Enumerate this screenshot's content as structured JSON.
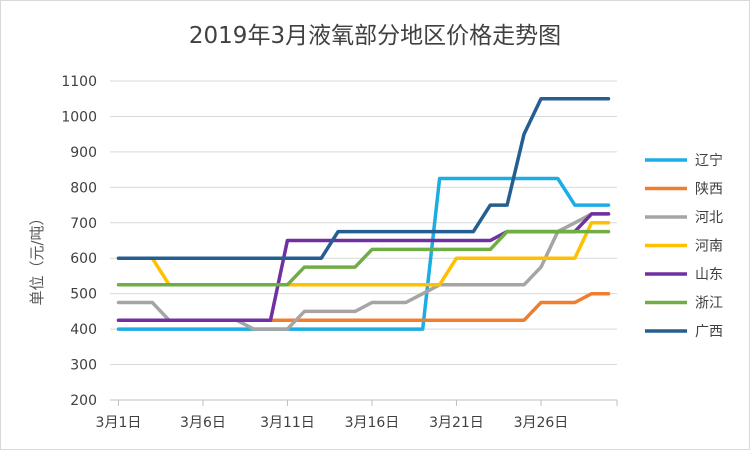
{
  "chart_data": {
    "type": "line",
    "title": "2019年3月液氧部分地区价格走势图",
    "ylabel": "单位（元/吨）",
    "xlabel": "",
    "ylim": [
      200,
      1100
    ],
    "yticks": [
      200,
      300,
      400,
      500,
      600,
      700,
      800,
      900,
      1000,
      1100
    ],
    "x": [
      1,
      2,
      3,
      4,
      5,
      6,
      7,
      8,
      9,
      10,
      11,
      12,
      13,
      14,
      15,
      16,
      17,
      18,
      19,
      20,
      21,
      22,
      23,
      24,
      25,
      26,
      27,
      28,
      29,
      30
    ],
    "xticks": [
      {
        "x": 1,
        "label": "3月1日"
      },
      {
        "x": 6,
        "label": "3月6日"
      },
      {
        "x": 11,
        "label": "3月11日"
      },
      {
        "x": 16,
        "label": "3月16日"
      },
      {
        "x": 21,
        "label": "3月21日"
      },
      {
        "x": 26,
        "label": "3月26日"
      }
    ],
    "legend_position": "right",
    "grid": true,
    "series": [
      {
        "name": "辽宁",
        "color": "#1cade4",
        "values": [
          400,
          400,
          400,
          400,
          400,
          400,
          400,
          400,
          400,
          400,
          400,
          400,
          400,
          400,
          400,
          400,
          400,
          400,
          400,
          825,
          825,
          825,
          825,
          825,
          825,
          825,
          825,
          750,
          750,
          750
        ]
      },
      {
        "name": "陕西",
        "color": "#f07f2d",
        "values": [
          425,
          425,
          425,
          425,
          425,
          425,
          425,
          425,
          425,
          425,
          425,
          425,
          425,
          425,
          425,
          425,
          425,
          425,
          425,
          425,
          425,
          425,
          425,
          425,
          425,
          475,
          475,
          475,
          500,
          500
        ]
      },
      {
        "name": "河北",
        "color": "#a5a5a5",
        "values": [
          475,
          475,
          475,
          425,
          425,
          425,
          425,
          425,
          400,
          400,
          400,
          450,
          450,
          450,
          450,
          475,
          475,
          475,
          500,
          525,
          525,
          525,
          525,
          525,
          525,
          575,
          675,
          700,
          725,
          725
        ]
      },
      {
        "name": "河南",
        "color": "#ffc000",
        "values": [
          600,
          600,
          600,
          525,
          525,
          525,
          525,
          525,
          525,
          525,
          525,
          525,
          525,
          525,
          525,
          525,
          525,
          525,
          525,
          525,
          600,
          600,
          600,
          600,
          600,
          600,
          600,
          600,
          700,
          700
        ]
      },
      {
        "name": "山东",
        "color": "#7030a0",
        "values": [
          425,
          425,
          425,
          425,
          425,
          425,
          425,
          425,
          425,
          425,
          650,
          650,
          650,
          650,
          650,
          650,
          650,
          650,
          650,
          650,
          650,
          650,
          650,
          675,
          675,
          675,
          675,
          675,
          725,
          725
        ]
      },
      {
        "name": "浙江",
        "color": "#70ad47",
        "values": [
          525,
          525,
          525,
          525,
          525,
          525,
          525,
          525,
          525,
          525,
          525,
          575,
          575,
          575,
          575,
          625,
          625,
          625,
          625,
          625,
          625,
          625,
          625,
          675,
          675,
          675,
          675,
          675,
          675,
          675
        ]
      },
      {
        "name": "广西",
        "color": "#255e91",
        "values": [
          600,
          600,
          600,
          600,
          600,
          600,
          600,
          600,
          600,
          600,
          600,
          600,
          600,
          675,
          675,
          675,
          675,
          675,
          675,
          675,
          675,
          675,
          750,
          750,
          950,
          1050,
          1050,
          1050,
          1050,
          1050
        ]
      }
    ]
  }
}
